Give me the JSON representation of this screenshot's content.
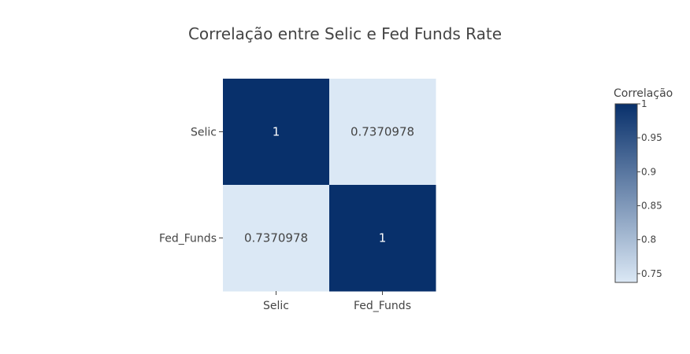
{
  "chart_data": {
    "type": "heatmap",
    "title": "Correlação entre Selic e Fed Funds Rate",
    "x_categories": [
      "Selic",
      "Fed_Funds"
    ],
    "y_categories": [
      "Selic",
      "Fed_Funds"
    ],
    "z": [
      [
        1,
        0.7370978
      ],
      [
        0.7370978,
        1
      ]
    ],
    "cell_labels": [
      [
        "1",
        "0.7370978"
      ],
      [
        "0.7370978",
        "1"
      ]
    ],
    "colorscale": [
      [
        0,
        "#dbe8f5"
      ],
      [
        1,
        "#08306b"
      ]
    ],
    "colorbar": {
      "title": "Correlação",
      "range": [
        0.7370978,
        1
      ],
      "tickvals": [
        1,
        0.95,
        0.9,
        0.85,
        0.8,
        0.75
      ],
      "ticktext": [
        "1",
        "0.95",
        "0.9",
        "0.85",
        "0.8",
        "0.75"
      ]
    },
    "text_color_dark": "#ffffff",
    "text_color_light": "#444444",
    "grid": false
  }
}
